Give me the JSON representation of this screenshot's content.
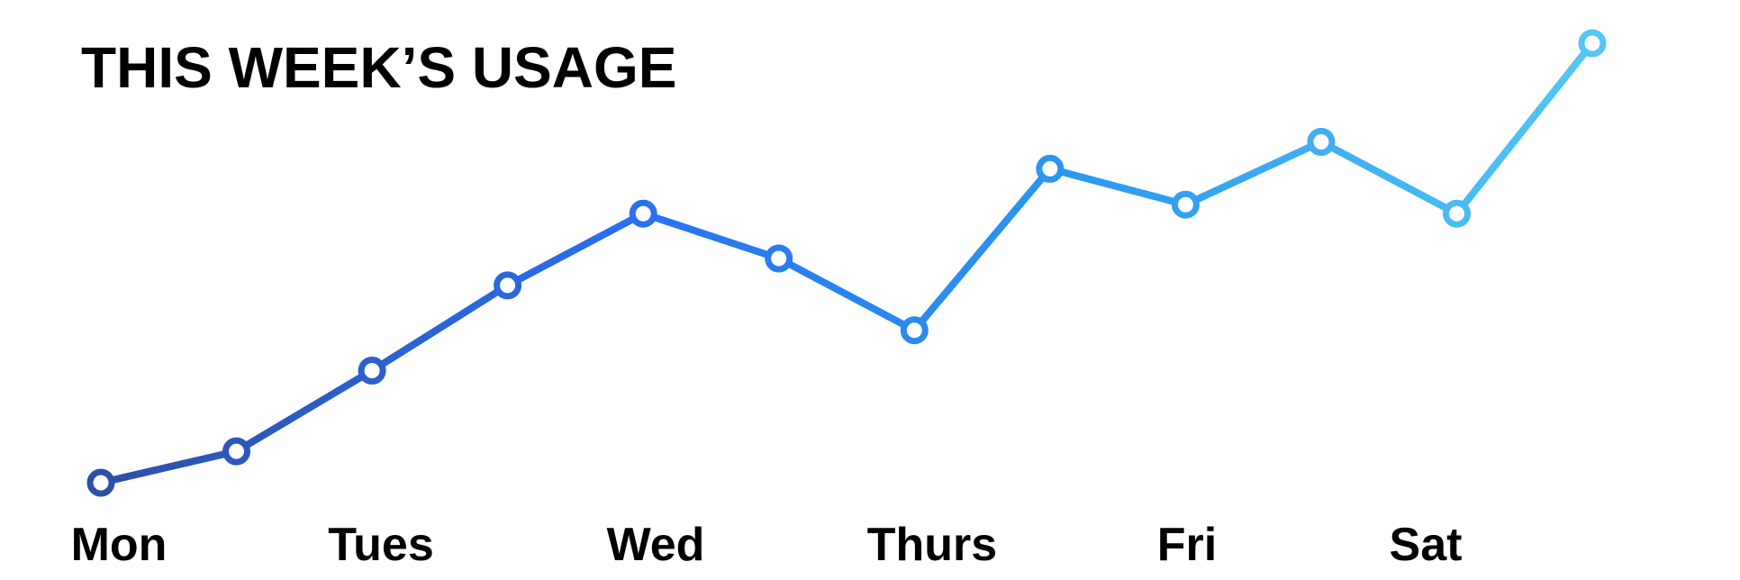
{
  "chart_data": {
    "type": "line",
    "title": "THIS WEEK’S USAGE",
    "xlabel": "",
    "ylabel": "",
    "x_tick_labels": [
      "Mon",
      "Tues",
      "Wed",
      "Thurs",
      "Fri",
      "Sat"
    ],
    "points_per_day": 2,
    "values": [
      0.0,
      0.7,
      2.5,
      4.4,
      6.0,
      5.0,
      3.4,
      7.0,
      6.2,
      7.6,
      6.0,
      9.8
    ],
    "ylim": [
      0,
      10
    ],
    "grid": false,
    "legend": "none",
    "line_gradient": [
      "#2e4fa8",
      "#2a6ff0",
      "#2a98ef",
      "#55c6f5"
    ],
    "marker_fill": "#ffffff"
  }
}
